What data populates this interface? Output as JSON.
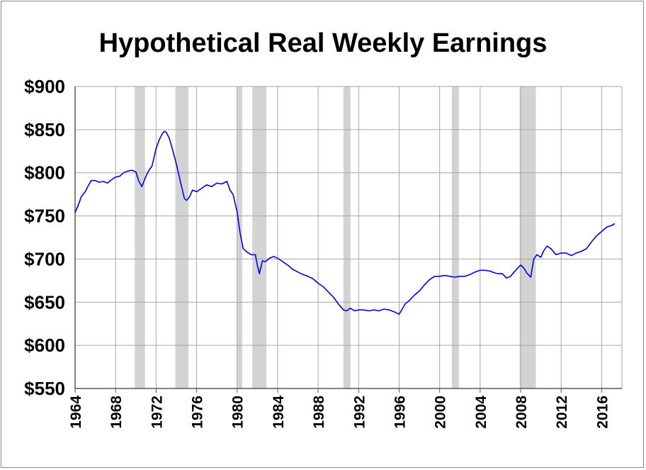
{
  "chart_data": {
    "type": "line",
    "title": "Hypothetical Real Weekly Earnings",
    "xlabel": "",
    "ylabel": "",
    "xlim": [
      1964,
      2018
    ],
    "ylim": [
      550,
      900
    ],
    "grid": true,
    "y_ticks": [
      {
        "value": 550,
        "label": "$550"
      },
      {
        "value": 600,
        "label": "$600"
      },
      {
        "value": 650,
        "label": "$650"
      },
      {
        "value": 700,
        "label": "$700"
      },
      {
        "value": 750,
        "label": "$750"
      },
      {
        "value": 800,
        "label": "$800"
      },
      {
        "value": 850,
        "label": "$850"
      },
      {
        "value": 900,
        "label": "$900"
      }
    ],
    "x_ticks": [
      {
        "value": 1964,
        "label": "1964"
      },
      {
        "value": 1968,
        "label": "1968"
      },
      {
        "value": 1972,
        "label": "1972"
      },
      {
        "value": 1976,
        "label": "1976"
      },
      {
        "value": 1980,
        "label": "1980"
      },
      {
        "value": 1984,
        "label": "1984"
      },
      {
        "value": 1988,
        "label": "1988"
      },
      {
        "value": 1992,
        "label": "1992"
      },
      {
        "value": 1996,
        "label": "1996"
      },
      {
        "value": 2000,
        "label": "2000"
      },
      {
        "value": 2004,
        "label": "2004"
      },
      {
        "value": 2008,
        "label": "2008"
      },
      {
        "value": 2012,
        "label": "2012"
      },
      {
        "value": 2016,
        "label": "2016"
      }
    ],
    "recession_bands": [
      [
        1969.9,
        1970.9
      ],
      [
        1973.9,
        1975.2
      ],
      [
        1980.0,
        1980.5
      ],
      [
        1981.5,
        1982.9
      ],
      [
        1990.5,
        1991.2
      ],
      [
        2001.2,
        2001.9
      ],
      [
        2007.9,
        2009.5
      ]
    ],
    "colors": {
      "line": "#0000ee",
      "recession": "#d3d3d3",
      "grid": "#a6a6a6",
      "axis": "#595959"
    },
    "series": [
      {
        "name": "",
        "x": [
          1964.0,
          1964.3,
          1964.6,
          1965.0,
          1965.3,
          1965.6,
          1966.0,
          1966.4,
          1966.8,
          1967.2,
          1967.6,
          1968.0,
          1968.4,
          1968.8,
          1969.2,
          1969.6,
          1970.0,
          1970.3,
          1970.6,
          1970.9,
          1971.2,
          1971.6,
          1972.0,
          1972.3,
          1972.6,
          1972.8,
          1973.0,
          1973.3,
          1973.6,
          1973.9,
          1974.2,
          1974.5,
          1974.8,
          1975.0,
          1975.3,
          1975.6,
          1976.0,
          1976.5,
          1977.0,
          1977.5,
          1978.0,
          1978.5,
          1979.0,
          1979.3,
          1979.6,
          1980.0,
          1980.3,
          1980.6,
          1981.0,
          1981.4,
          1981.8,
          1982.0,
          1982.2,
          1982.5,
          1982.8,
          1983.2,
          1983.6,
          1984.0,
          1984.5,
          1985.0,
          1985.5,
          1986.0,
          1986.5,
          1987.0,
          1987.5,
          1988.0,
          1988.5,
          1989.0,
          1989.5,
          1990.0,
          1990.5,
          1990.8,
          1991.2,
          1991.6,
          1992.0,
          1992.5,
          1993.0,
          1993.5,
          1994.0,
          1994.5,
          1995.0,
          1995.5,
          1996.0,
          1996.3,
          1996.6,
          1997.0,
          1997.5,
          1998.0,
          1998.5,
          1999.0,
          1999.5,
          2000.0,
          2000.5,
          2001.0,
          2001.5,
          2002.0,
          2002.5,
          2003.0,
          2003.5,
          2004.0,
          2004.5,
          2005.0,
          2005.4,
          2005.8,
          2006.2,
          2006.6,
          2007.0,
          2007.5,
          2008.0,
          2008.3,
          2008.6,
          2009.0,
          2009.3,
          2009.6,
          2010.0,
          2010.3,
          2010.6,
          2011.0,
          2011.5,
          2012.0,
          2012.5,
          2013.0,
          2013.5,
          2014.0,
          2014.5,
          2015.0,
          2015.5,
          2016.0,
          2016.5,
          2017.0,
          2017.3
        ],
        "values": [
          754,
          762,
          772,
          778,
          785,
          791,
          791,
          789,
          790,
          788,
          792,
          795,
          796,
          800,
          802,
          803,
          801,
          790,
          784,
          793,
          801,
          808,
          828,
          838,
          845,
          848,
          847,
          840,
          828,
          815,
          800,
          785,
          770,
          768,
          772,
          780,
          778,
          782,
          786,
          784,
          788,
          787,
          790,
          780,
          775,
          755,
          730,
          712,
          708,
          705,
          705,
          693,
          683,
          698,
          697,
          701,
          703,
          701,
          697,
          693,
          688,
          685,
          682,
          680,
          677,
          672,
          668,
          662,
          656,
          648,
          641,
          640,
          643,
          640,
          641,
          641,
          640,
          641,
          640,
          642,
          641,
          639,
          636,
          642,
          648,
          652,
          658,
          663,
          670,
          676,
          680,
          680,
          681,
          680,
          679,
          680,
          680,
          682,
          685,
          687,
          687,
          686,
          684,
          683,
          683,
          678,
          680,
          687,
          693,
          690,
          684,
          679,
          700,
          705,
          702,
          710,
          715,
          712,
          705,
          707,
          707,
          704,
          707,
          709,
          712,
          720,
          727,
          732,
          737,
          739,
          741
        ]
      }
    ]
  }
}
